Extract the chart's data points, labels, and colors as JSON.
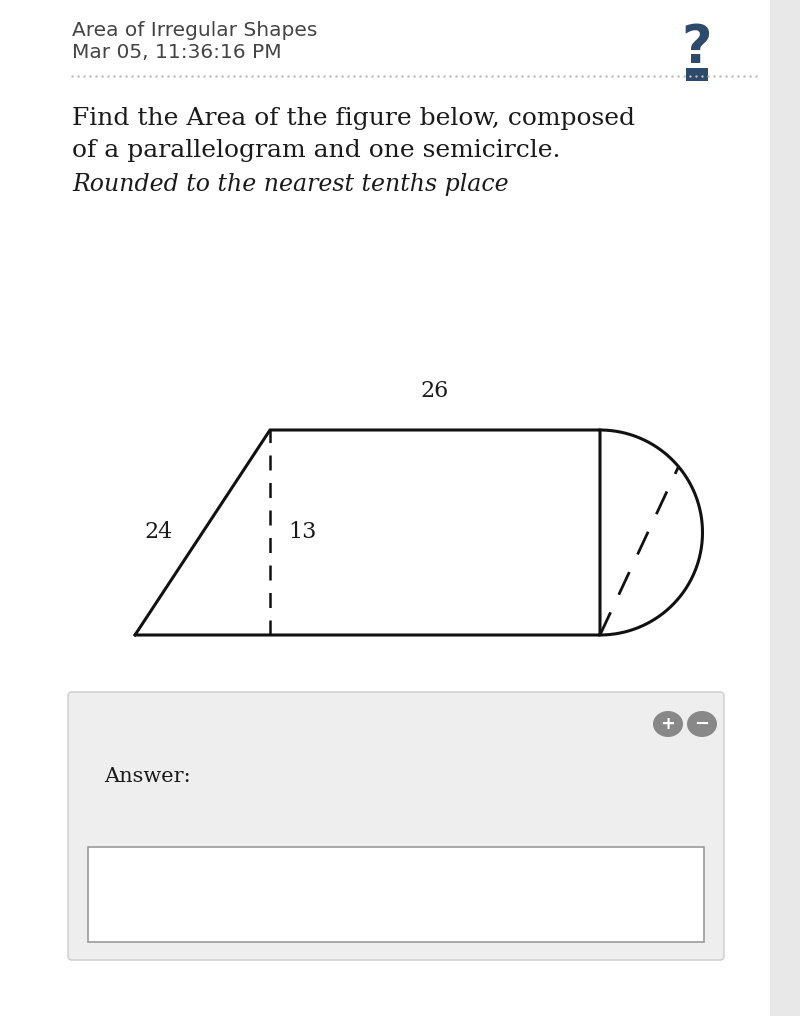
{
  "bg_color": "#ffffff",
  "header_text1": "Area of Irregular Shapes",
  "header_text2": "Mar 05, 11:36:16 PM",
  "header_color": "#444444",
  "question_mark_color": "#2d4a6b",
  "divider_color": "#bbbbbb",
  "problem_line1": "Find the Area of the figure below, composed",
  "problem_line2": "of a parallelogram and one semicircle.",
  "problem_line3": "Rounded to the nearest tenths place",
  "text_color": "#1a1a1a",
  "shape_color": "#111111",
  "label_26": "26",
  "label_24": "24",
  "label_13": "13",
  "answer_box_bg": "#eeeeee",
  "answer_label": "Answer:",
  "plus_minus_color": "#888888",
  "input_box_bg": "#ffffff",
  "input_box_border": "#999999",
  "font_header": "DejaVu Sans",
  "font_body": "DejaVu Serif",
  "fig_width": 8.0,
  "fig_height": 10.16,
  "dpi": 100
}
